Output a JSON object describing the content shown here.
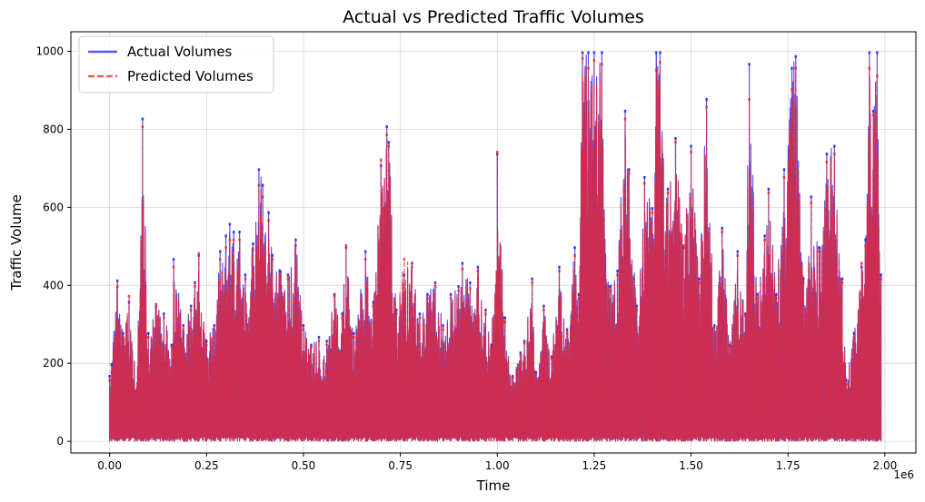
{
  "chart_data": {
    "type": "line",
    "title": "Actual vs Predicted Traffic Volumes",
    "xlabel": "Time",
    "ylabel": "Traffic Volume",
    "x_offset_label": "1e6",
    "xlim": [
      -0.1,
      2.08
    ],
    "ylim": [
      -30,
      1050
    ],
    "x_ticks": [
      0.0,
      0.25,
      0.5,
      0.75,
      1.0,
      1.25,
      1.5,
      1.75,
      2.0
    ],
    "x_tick_labels": [
      "0.00",
      "0.25",
      "0.50",
      "0.75",
      "1.00",
      "1.25",
      "1.50",
      "1.75",
      "2.00"
    ],
    "y_ticks": [
      0,
      200,
      400,
      600,
      800,
      1000
    ],
    "y_tick_labels": [
      "0",
      "200",
      "400",
      "600",
      "800",
      "1000"
    ],
    "grid": true,
    "legend_position": "top-left",
    "series": [
      {
        "name": "Actual Volumes",
        "color": "#2222ee",
        "style": "solid",
        "peaks": [
          [
            0.0,
            170
          ],
          [
            0.005,
            200
          ],
          [
            0.02,
            415
          ],
          [
            0.035,
            280
          ],
          [
            0.05,
            360
          ],
          [
            0.07,
            135
          ],
          [
            0.085,
            830
          ],
          [
            0.1,
            280
          ],
          [
            0.12,
            350
          ],
          [
            0.14,
            330
          ],
          [
            0.16,
            250
          ],
          [
            0.165,
            470
          ],
          [
            0.19,
            300
          ],
          [
            0.21,
            350
          ],
          [
            0.22,
            410
          ],
          [
            0.23,
            480
          ],
          [
            0.25,
            260
          ],
          [
            0.27,
            300
          ],
          [
            0.285,
            490
          ],
          [
            0.3,
            530
          ],
          [
            0.31,
            560
          ],
          [
            0.32,
            540
          ],
          [
            0.335,
            540
          ],
          [
            0.35,
            430
          ],
          [
            0.37,
            510
          ],
          [
            0.385,
            700
          ],
          [
            0.395,
            660
          ],
          [
            0.41,
            590
          ],
          [
            0.42,
            480
          ],
          [
            0.44,
            440
          ],
          [
            0.46,
            430
          ],
          [
            0.48,
            520
          ],
          [
            0.5,
            300
          ],
          [
            0.52,
            250
          ],
          [
            0.54,
            270
          ],
          [
            0.56,
            260
          ],
          [
            0.58,
            380
          ],
          [
            0.6,
            330
          ],
          [
            0.61,
            500
          ],
          [
            0.63,
            280
          ],
          [
            0.66,
            490
          ],
          [
            0.68,
            360
          ],
          [
            0.7,
            710
          ],
          [
            0.715,
            810
          ],
          [
            0.72,
            770
          ],
          [
            0.74,
            340
          ],
          [
            0.76,
            430
          ],
          [
            0.78,
            460
          ],
          [
            0.8,
            330
          ],
          [
            0.82,
            380
          ],
          [
            0.84,
            410
          ],
          [
            0.86,
            300
          ],
          [
            0.88,
            380
          ],
          [
            0.9,
            400
          ],
          [
            0.91,
            460
          ],
          [
            0.93,
            410
          ],
          [
            0.95,
            450
          ],
          [
            0.97,
            340
          ],
          [
            0.985,
            250
          ],
          [
            1.0,
            740
          ],
          [
            1.02,
            320
          ],
          [
            1.04,
            170
          ],
          [
            1.06,
            230
          ],
          [
            1.07,
            260
          ],
          [
            1.09,
            420
          ],
          [
            1.1,
            180
          ],
          [
            1.12,
            350
          ],
          [
            1.14,
            220
          ],
          [
            1.16,
            450
          ],
          [
            1.18,
            290
          ],
          [
            1.2,
            500
          ],
          [
            1.21,
            380
          ],
          [
            1.22,
            1000
          ],
          [
            1.235,
            1000
          ],
          [
            1.25,
            1000
          ],
          [
            1.27,
            1000
          ],
          [
            1.29,
            400
          ],
          [
            1.31,
            440
          ],
          [
            1.33,
            850
          ],
          [
            1.34,
            700
          ],
          [
            1.36,
            350
          ],
          [
            1.38,
            680
          ],
          [
            1.4,
            600
          ],
          [
            1.41,
            1000
          ],
          [
            1.42,
            1000
          ],
          [
            1.44,
            650
          ],
          [
            1.46,
            780
          ],
          [
            1.48,
            500
          ],
          [
            1.5,
            760
          ],
          [
            1.52,
            420
          ],
          [
            1.54,
            880
          ],
          [
            1.56,
            300
          ],
          [
            1.58,
            550
          ],
          [
            1.6,
            250
          ],
          [
            1.62,
            490
          ],
          [
            1.64,
            330
          ],
          [
            1.65,
            970
          ],
          [
            1.67,
            380
          ],
          [
            1.69,
            530
          ],
          [
            1.7,
            650
          ],
          [
            1.72,
            380
          ],
          [
            1.74,
            700
          ],
          [
            1.76,
            960
          ],
          [
            1.77,
            990
          ],
          [
            1.79,
            420
          ],
          [
            1.81,
            630
          ],
          [
            1.83,
            500
          ],
          [
            1.85,
            740
          ],
          [
            1.87,
            760
          ],
          [
            1.89,
            420
          ],
          [
            1.9,
            160
          ],
          [
            1.92,
            280
          ],
          [
            1.94,
            450
          ],
          [
            1.95,
            520
          ],
          [
            1.96,
            1000
          ],
          [
            1.97,
            850
          ],
          [
            1.98,
            1000
          ],
          [
            1.99,
            430
          ]
        ]
      },
      {
        "name": "Predicted Volumes",
        "color": "#ee2222",
        "style": "dashed",
        "peaks": [
          [
            0.0,
            160
          ],
          [
            0.005,
            180
          ],
          [
            0.02,
            400
          ],
          [
            0.035,
            270
          ],
          [
            0.05,
            375
          ],
          [
            0.07,
            130
          ],
          [
            0.085,
            810
          ],
          [
            0.1,
            270
          ],
          [
            0.12,
            355
          ],
          [
            0.14,
            320
          ],
          [
            0.16,
            245
          ],
          [
            0.165,
            450
          ],
          [
            0.19,
            290
          ],
          [
            0.21,
            340
          ],
          [
            0.22,
            400
          ],
          [
            0.23,
            485
          ],
          [
            0.25,
            250
          ],
          [
            0.27,
            290
          ],
          [
            0.285,
            470
          ],
          [
            0.3,
            500
          ],
          [
            0.31,
            520
          ],
          [
            0.32,
            520
          ],
          [
            0.335,
            520
          ],
          [
            0.35,
            420
          ],
          [
            0.37,
            495
          ],
          [
            0.385,
            660
          ],
          [
            0.395,
            630
          ],
          [
            0.41,
            570
          ],
          [
            0.42,
            470
          ],
          [
            0.44,
            430
          ],
          [
            0.46,
            420
          ],
          [
            0.48,
            505
          ],
          [
            0.5,
            290
          ],
          [
            0.52,
            245
          ],
          [
            0.54,
            260
          ],
          [
            0.56,
            250
          ],
          [
            0.58,
            375
          ],
          [
            0.6,
            320
          ],
          [
            0.61,
            505
          ],
          [
            0.63,
            270
          ],
          [
            0.66,
            470
          ],
          [
            0.68,
            350
          ],
          [
            0.7,
            725
          ],
          [
            0.715,
            790
          ],
          [
            0.72,
            760
          ],
          [
            0.74,
            330
          ],
          [
            0.76,
            470
          ],
          [
            0.78,
            450
          ],
          [
            0.8,
            320
          ],
          [
            0.82,
            370
          ],
          [
            0.84,
            400
          ],
          [
            0.86,
            290
          ],
          [
            0.88,
            370
          ],
          [
            0.9,
            390
          ],
          [
            0.91,
            445
          ],
          [
            0.93,
            395
          ],
          [
            0.95,
            440
          ],
          [
            0.97,
            330
          ],
          [
            0.985,
            240
          ],
          [
            1.0,
            745
          ],
          [
            1.02,
            310
          ],
          [
            1.04,
            165
          ],
          [
            1.06,
            225
          ],
          [
            1.07,
            255
          ],
          [
            1.09,
            410
          ],
          [
            1.1,
            175
          ],
          [
            1.12,
            340
          ],
          [
            1.14,
            215
          ],
          [
            1.16,
            440
          ],
          [
            1.18,
            280
          ],
          [
            1.2,
            480
          ],
          [
            1.21,
            370
          ],
          [
            1.22,
            985
          ],
          [
            1.235,
            960
          ],
          [
            1.25,
            980
          ],
          [
            1.27,
            970
          ],
          [
            1.29,
            390
          ],
          [
            1.31,
            430
          ],
          [
            1.33,
            830
          ],
          [
            1.34,
            690
          ],
          [
            1.36,
            340
          ],
          [
            1.38,
            665
          ],
          [
            1.4,
            590
          ],
          [
            1.41,
            955
          ],
          [
            1.42,
            975
          ],
          [
            1.44,
            640
          ],
          [
            1.46,
            770
          ],
          [
            1.48,
            505
          ],
          [
            1.5,
            745
          ],
          [
            1.52,
            410
          ],
          [
            1.54,
            860
          ],
          [
            1.56,
            295
          ],
          [
            1.58,
            540
          ],
          [
            1.6,
            245
          ],
          [
            1.62,
            480
          ],
          [
            1.64,
            325
          ],
          [
            1.65,
            880
          ],
          [
            1.67,
            370
          ],
          [
            1.69,
            520
          ],
          [
            1.7,
            640
          ],
          [
            1.72,
            370
          ],
          [
            1.74,
            680
          ],
          [
            1.76,
            905
          ],
          [
            1.77,
            960
          ],
          [
            1.79,
            410
          ],
          [
            1.81,
            615
          ],
          [
            1.83,
            490
          ],
          [
            1.85,
            720
          ],
          [
            1.87,
            740
          ],
          [
            1.89,
            410
          ],
          [
            1.9,
            150
          ],
          [
            1.92,
            270
          ],
          [
            1.94,
            460
          ],
          [
            1.95,
            505
          ],
          [
            1.96,
            960
          ],
          [
            1.97,
            840
          ],
          [
            1.98,
            940
          ],
          [
            1.99,
            420
          ]
        ]
      }
    ]
  }
}
